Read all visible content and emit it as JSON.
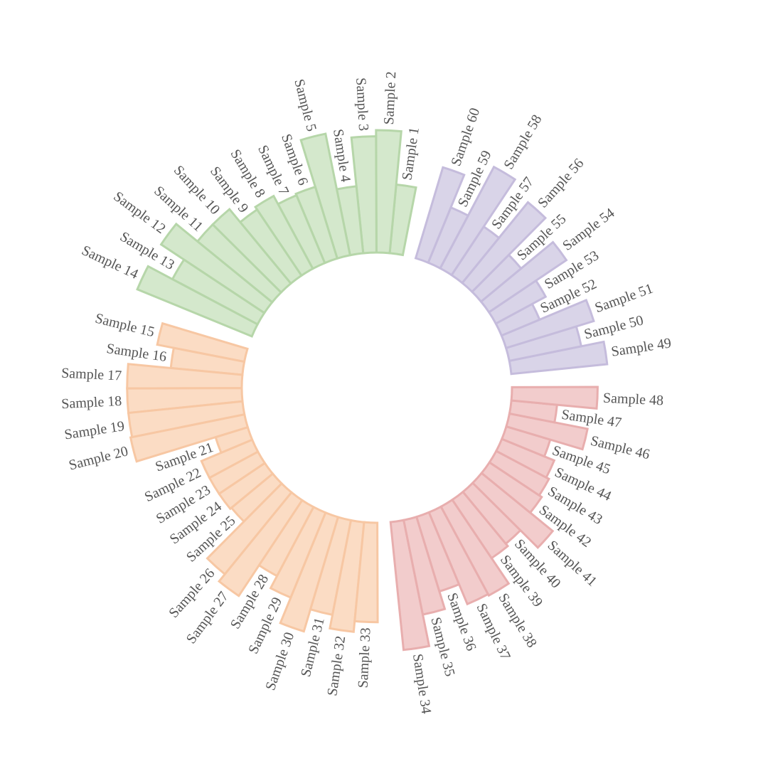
{
  "chart_data": {
    "type": "bar",
    "layout": "circular",
    "title": "",
    "xlabel": "",
    "ylabel": "",
    "ylim": [
      0,
      10
    ],
    "grid": false,
    "legend": "none",
    "groups": [
      {
        "fill": "#d4e8cc",
        "stroke": "#b6d6a9",
        "categories": [
          "Sample 1",
          "Sample 2",
          "Sample 3",
          "Sample 4",
          "Sample 5",
          "Sample 6",
          "Sample 7",
          "Sample 8",
          "Sample 9",
          "Sample 10",
          "Sample 11",
          "Sample 12",
          "Sample 13",
          "Sample 14"
        ],
        "values": [
          4.5,
          8.0,
          7.6,
          4.4,
          8.1,
          4.9,
          4.8,
          5.4,
          5.2,
          6.3,
          6.3,
          8.1,
          6.3,
          8.1
        ]
      },
      {
        "fill": "#fbdcc4",
        "stroke": "#f7c7a3",
        "categories": [
          "Sample 15",
          "Sample 16",
          "Sample 17",
          "Sample 18",
          "Sample 19",
          "Sample 20",
          "Sample 21",
          "Sample 22",
          "Sample 23",
          "Sample 24",
          "Sample 25",
          "Sample 26",
          "Sample 27",
          "Sample 28",
          "Sample 29",
          "Sample 30",
          "Sample 31",
          "Sample 32",
          "Sample 33"
        ],
        "values": [
          5.8,
          4.7,
          7.5,
          7.5,
          7.5,
          7.6,
          2.2,
          3.6,
          3.6,
          3.6,
          3.5,
          6.9,
          7.5,
          5.1,
          6.0,
          7.8,
          6.3,
          7.2,
          6.5
        ]
      },
      {
        "fill": "#f2cccc",
        "stroke": "#e8aeae",
        "categories": [
          "Sample 34",
          "Sample 35",
          "Sample 36",
          "Sample 37",
          "Sample 38",
          "Sample 39",
          "Sample 40",
          "Sample 41",
          "Sample 42",
          "Sample 43",
          "Sample 44",
          "Sample 45",
          "Sample 46",
          "Sample 47",
          "Sample 48"
        ],
        "values": [
          8.4,
          6.3,
          5.1,
          6.5,
          6.6,
          4.6,
          4.4,
          6.0,
          4.1,
          3.9,
          3.7,
          3.0,
          5.2,
          3.0,
          5.6
        ]
      },
      {
        "fill": "#d9d4e8",
        "stroke": "#c5bcdc",
        "categories": [
          "Sample 49",
          "Sample 50",
          "Sample 51",
          "Sample 52",
          "Sample 53",
          "Sample 54",
          "Sample 55",
          "Sample 56",
          "Sample 57",
          "Sample 58",
          "Sample 59",
          "Sample 60"
        ],
        "values": [
          6.3,
          4.8,
          6.0,
          2.7,
          3.7,
          6.1,
          3.4,
          6.8,
          3.8,
          7.5,
          3.9,
          6.2
        ]
      }
    ]
  }
}
